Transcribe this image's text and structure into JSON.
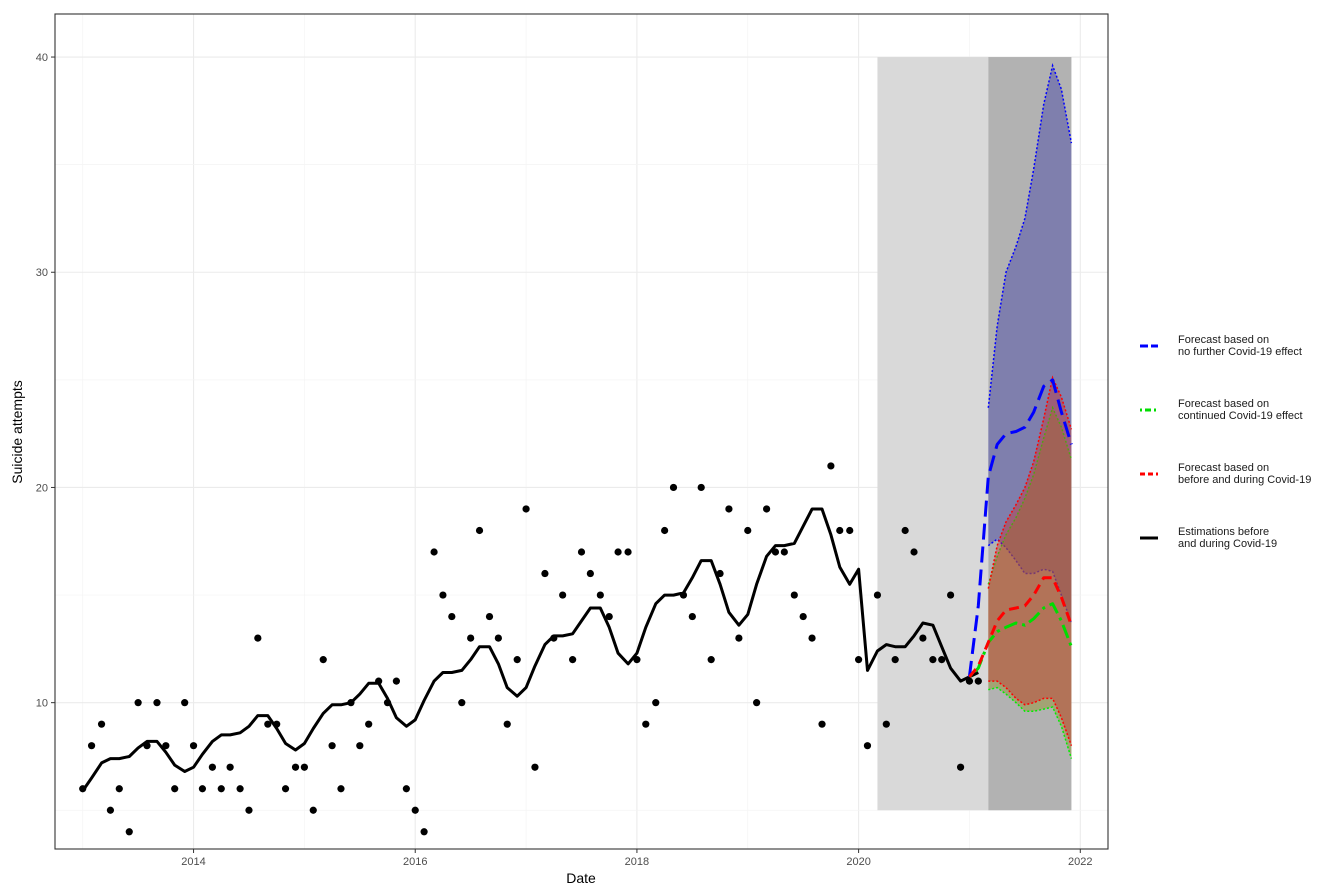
{
  "chart_data": {
    "type": "line",
    "title": "",
    "xlabel": "Date",
    "ylabel": "Suicide attempts",
    "xlim": [
      2012.75,
      2022.25
    ],
    "ylim": [
      3.2,
      42.0
    ],
    "x_ticks": [
      {
        "value": 2014,
        "label": "2014"
      },
      {
        "value": 2016,
        "label": "2016"
      },
      {
        "value": 2018,
        "label": "2018"
      },
      {
        "value": 2020,
        "label": "2020"
      },
      {
        "value": 2022,
        "label": "2022"
      }
    ],
    "y_ticks": [
      {
        "value": 10,
        "label": "10"
      },
      {
        "value": 20,
        "label": "20"
      },
      {
        "value": 30,
        "label": "30"
      },
      {
        "value": 40,
        "label": "40"
      }
    ],
    "grid": true,
    "legend_position": "right",
    "shaded_periods": [
      {
        "x": [
          2020.17,
          2021.17
        ],
        "y": [
          5,
          40
        ],
        "color": "#d9d9d9"
      },
      {
        "x": [
          2021.17,
          2021.92
        ],
        "y": [
          5,
          40
        ],
        "color": "#b2b2b2"
      }
    ],
    "observed_points": {
      "color": "#000000",
      "x": [
        2013.0,
        2013.08,
        2013.17,
        2013.25,
        2013.33,
        2013.42,
        2013.5,
        2013.58,
        2013.67,
        2013.75,
        2013.83,
        2013.92,
        2014.0,
        2014.08,
        2014.17,
        2014.25,
        2014.33,
        2014.42,
        2014.5,
        2014.58,
        2014.67,
        2014.75,
        2014.83,
        2014.92,
        2015.0,
        2015.08,
        2015.17,
        2015.25,
        2015.33,
        2015.42,
        2015.5,
        2015.58,
        2015.67,
        2015.75,
        2015.83,
        2015.92,
        2016.0,
        2016.08,
        2016.17,
        2016.25,
        2016.33,
        2016.42,
        2016.5,
        2016.58,
        2016.67,
        2016.75,
        2016.83,
        2016.92,
        2017.0,
        2017.08,
        2017.17,
        2017.25,
        2017.33,
        2017.42,
        2017.5,
        2017.58,
        2017.67,
        2017.75,
        2017.83,
        2017.92,
        2018.0,
        2018.08,
        2018.17,
        2018.25,
        2018.33,
        2018.42,
        2018.5,
        2018.58,
        2018.67,
        2018.75,
        2018.83,
        2018.92,
        2019.0,
        2019.08,
        2019.17,
        2019.25,
        2019.33,
        2019.42,
        2019.5,
        2019.58,
        2019.67,
        2019.75,
        2019.83,
        2019.92,
        2020.0,
        2020.08,
        2020.17,
        2020.25,
        2020.33,
        2020.42,
        2020.5,
        2020.58,
        2020.67,
        2020.75,
        2020.83,
        2020.92,
        2021.0,
        2021.08
      ],
      "y": [
        6,
        8,
        9,
        5,
        6,
        4,
        10,
        8,
        10,
        8,
        6,
        10,
        8,
        6,
        7,
        6,
        7,
        6,
        5,
        13,
        9,
        9,
        6,
        7,
        7,
        5,
        12,
        8,
        6,
        10,
        8,
        9,
        11,
        10,
        11,
        6,
        5,
        4,
        17,
        15,
        14,
        10,
        13,
        18,
        14,
        13,
        9,
        12,
        19,
        7,
        16,
        13,
        15,
        12,
        17,
        16,
        15,
        14,
        17,
        17,
        12,
        9,
        10,
        18,
        20,
        15,
        14,
        20,
        12,
        16,
        19,
        13,
        18,
        10,
        19,
        17,
        17,
        15,
        14,
        13,
        9,
        21,
        18,
        18,
        12,
        8,
        15,
        9,
        12,
        18,
        17,
        13,
        12,
        12,
        15,
        7,
        11,
        11
      ]
    },
    "series": [
      {
        "name": "Estimations before and during Covid-19",
        "color": "#000000",
        "dash": "solid",
        "x": [
          2013.0,
          2013.08,
          2013.17,
          2013.25,
          2013.33,
          2013.42,
          2013.5,
          2013.58,
          2013.67,
          2013.75,
          2013.83,
          2013.92,
          2014.0,
          2014.08,
          2014.17,
          2014.25,
          2014.33,
          2014.42,
          2014.5,
          2014.58,
          2014.67,
          2014.75,
          2014.83,
          2014.92,
          2015.0,
          2015.08,
          2015.17,
          2015.25,
          2015.33,
          2015.42,
          2015.5,
          2015.58,
          2015.67,
          2015.75,
          2015.83,
          2015.92,
          2016.0,
          2016.08,
          2016.17,
          2016.25,
          2016.33,
          2016.42,
          2016.5,
          2016.58,
          2016.67,
          2016.75,
          2016.83,
          2016.92,
          2017.0,
          2017.08,
          2017.17,
          2017.25,
          2017.33,
          2017.42,
          2017.5,
          2017.58,
          2017.67,
          2017.75,
          2017.83,
          2017.92,
          2018.0,
          2018.08,
          2018.17,
          2018.25,
          2018.33,
          2018.42,
          2018.5,
          2018.58,
          2018.67,
          2018.75,
          2018.83,
          2018.92,
          2019.0,
          2019.08,
          2019.17,
          2019.25,
          2019.33,
          2019.42,
          2019.5,
          2019.58,
          2019.67,
          2019.75,
          2019.83,
          2019.92,
          2020.0,
          2020.08,
          2020.17,
          2020.25,
          2020.33,
          2020.42,
          2020.5,
          2020.58,
          2020.67,
          2020.75,
          2020.83,
          2020.92,
          2021.0,
          2021.08
        ],
        "y": [
          5.9,
          6.5,
          7.2,
          7.4,
          7.4,
          7.5,
          7.9,
          8.2,
          8.2,
          7.7,
          7.1,
          6.8,
          7.0,
          7.6,
          8.2,
          8.5,
          8.5,
          8.6,
          8.9,
          9.4,
          9.4,
          8.8,
          8.1,
          7.8,
          8.1,
          8.8,
          9.5,
          9.9,
          9.9,
          10.0,
          10.4,
          10.9,
          10.9,
          10.2,
          9.3,
          8.9,
          9.2,
          10.1,
          11.0,
          11.4,
          11.4,
          11.5,
          12.0,
          12.6,
          12.6,
          11.8,
          10.7,
          10.3,
          10.7,
          11.7,
          12.7,
          13.1,
          13.1,
          13.2,
          13.8,
          14.4,
          14.4,
          13.5,
          12.3,
          11.8,
          12.3,
          13.5,
          14.6,
          15.0,
          15.0,
          15.1,
          15.8,
          16.6,
          16.6,
          15.5,
          14.2,
          13.6,
          14.1,
          15.5,
          16.8,
          17.3,
          17.3,
          17.4,
          18.2,
          19.0,
          19.0,
          17.8,
          16.3,
          15.5,
          16.2,
          11.5,
          12.4,
          12.7,
          12.6,
          12.6,
          13.1,
          13.7,
          13.6,
          12.6,
          11.6,
          11.0,
          11.2,
          11.4
        ]
      },
      {
        "name": "Forecast based on no further Covid-19 effect",
        "color": "#0000ff",
        "dash": "longdash",
        "x": [
          2021.0,
          2021.08,
          2021.17,
          2021.25,
          2021.33,
          2021.42,
          2021.5,
          2021.58,
          2021.67,
          2021.75,
          2021.83,
          2021.92
        ],
        "y": [
          11.2,
          14.5,
          20.5,
          22.0,
          22.5,
          22.6,
          22.8,
          23.5,
          24.7,
          25.0,
          23.5,
          22.0
        ]
      },
      {
        "name": "Forecast based on continued Covid-19 effect",
        "color": "#00dd00",
        "dash": "dotdash",
        "x": [
          2021.0,
          2021.08,
          2021.17,
          2021.25,
          2021.33,
          2021.42,
          2021.5,
          2021.58,
          2021.67,
          2021.75,
          2021.83,
          2021.92
        ],
        "y": [
          11.2,
          11.6,
          12.8,
          13.3,
          13.5,
          13.7,
          13.6,
          13.9,
          14.4,
          14.6,
          13.8,
          12.6
        ]
      },
      {
        "name": "Forecast based on before and during Covid-19",
        "color": "#ff0000",
        "dash": "dashed",
        "x": [
          2021.0,
          2021.08,
          2021.17,
          2021.25,
          2021.33,
          2021.42,
          2021.5,
          2021.58,
          2021.67,
          2021.75,
          2021.83,
          2021.92
        ],
        "y": [
          11.2,
          11.7,
          12.8,
          13.8,
          14.3,
          14.4,
          14.5,
          15.0,
          15.8,
          15.8,
          14.9,
          13.6
        ]
      }
    ],
    "intervals": [
      {
        "series": "Forecast based on no further Covid-19 effect",
        "color": "#0000ff",
        "fill": "#3a3aa6",
        "x": [
          2021.17,
          2021.25,
          2021.33,
          2021.42,
          2021.5,
          2021.58,
          2021.67,
          2021.75,
          2021.83,
          2021.92
        ],
        "upper": [
          23.7,
          27.5,
          30.0,
          31.2,
          32.5,
          34.8,
          37.8,
          39.6,
          38.5,
          36.0
        ],
        "lower": [
          17.3,
          17.6,
          17.2,
          16.6,
          16.0,
          16.0,
          16.2,
          16.1,
          15.0,
          13.7
        ]
      },
      {
        "series": "Forecast based on continued Covid-19 effect",
        "color": "#00ee00",
        "fill": "#909020",
        "x": [
          2021.17,
          2021.25,
          2021.33,
          2021.42,
          2021.5,
          2021.58,
          2021.67,
          2021.75,
          2021.83,
          2021.92
        ],
        "upper": [
          15.5,
          16.8,
          17.8,
          18.6,
          19.5,
          20.6,
          22.3,
          23.7,
          22.8,
          21.3
        ],
        "lower": [
          10.6,
          10.7,
          10.4,
          10.0,
          9.6,
          9.6,
          9.7,
          9.8,
          8.9,
          7.4
        ]
      },
      {
        "series": "Forecast based on before and during Covid-19",
        "color": "#ff0000",
        "fill": "#c83232",
        "x": [
          2021.17,
          2021.25,
          2021.33,
          2021.42,
          2021.5,
          2021.58,
          2021.67,
          2021.75,
          2021.83,
          2021.92
        ],
        "upper": [
          15.3,
          17.3,
          18.4,
          19.2,
          20.0,
          21.2,
          23.2,
          25.1,
          24.2,
          22.7
        ],
        "lower": [
          11.0,
          11.0,
          10.7,
          10.2,
          9.9,
          10.0,
          10.2,
          10.2,
          9.3,
          8.0
        ]
      }
    ],
    "legend": [
      {
        "line1": "Forecast based on",
        "line2": "no further Covid-19 effect",
        "color": "#0000ff",
        "dash": "longdash"
      },
      {
        "line1": "Forecast based on",
        "line2": "continued Covid-19 effect",
        "color": "#00dd00",
        "dash": "dotdash"
      },
      {
        "line1": "Forecast based on",
        "line2": "before and during Covid-19",
        "color": "#ff0000",
        "dash": "dashed"
      },
      {
        "line1": "Estimations before",
        "line2": "and during Covid-19",
        "color": "#000000",
        "dash": "solid"
      }
    ]
  }
}
